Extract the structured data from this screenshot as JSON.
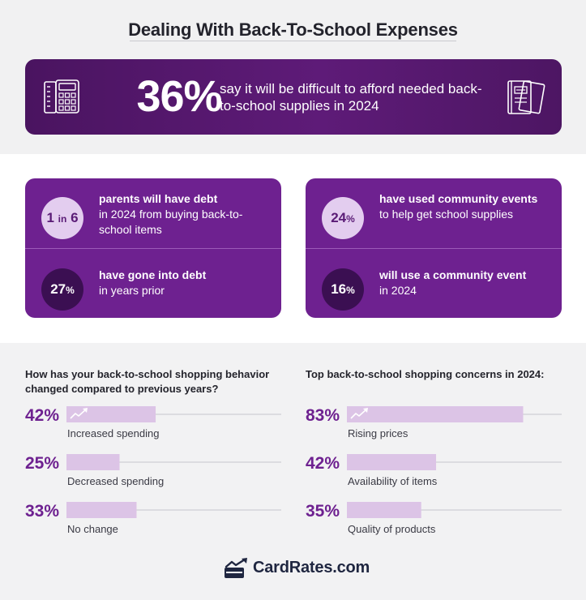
{
  "title": "Dealing With Back-To-School Expenses",
  "hero": {
    "percent": "36%",
    "text": "say it will be difficult to afford needed back-to-school supplies in 2024"
  },
  "cards": {
    "left": {
      "top": {
        "bubble_main": "1",
        "bubble_small": "in",
        "bubble_tail": "6",
        "bold": "parents will have debt",
        "rest": "in 2024 from buying back-to-school items"
      },
      "bottom": {
        "bubble_main": "27",
        "bubble_small": "%",
        "bold": "have gone into debt",
        "rest": "in years prior"
      }
    },
    "right": {
      "top": {
        "bubble_main": "24",
        "bubble_small": "%",
        "bold": "have used community events",
        "rest": "to help get school supplies"
      },
      "bottom": {
        "bubble_main": "16",
        "bubble_small": "%",
        "bold": "will use a community event",
        "rest": "in 2024"
      }
    }
  },
  "chart_data": [
    {
      "type": "bar",
      "title": "How has your back-to-school shopping behavior changed compared to previous years?",
      "categories": [
        "Increased spending",
        "Decreased spending",
        "No change"
      ],
      "values": [
        42,
        25,
        33
      ],
      "value_labels": [
        "42%",
        "25%",
        "33%"
      ],
      "ylim": [
        0,
        100
      ]
    },
    {
      "type": "bar",
      "title": "Top back-to-school shopping concerns in 2024:",
      "categories": [
        "Rising prices",
        "Availability of items",
        "Quality of products"
      ],
      "values": [
        83,
        42,
        35
      ],
      "value_labels": [
        "83%",
        "42%",
        "35%"
      ],
      "ylim": [
        0,
        100
      ]
    }
  ],
  "colors": {
    "accent": "#6e2190",
    "bar": "#dcc4e6",
    "bar_icon": "#a985bb",
    "axis_line": "#c7c7cc",
    "label": "#3a3a44"
  },
  "footer": {
    "logo_text": "CardRates.com"
  }
}
